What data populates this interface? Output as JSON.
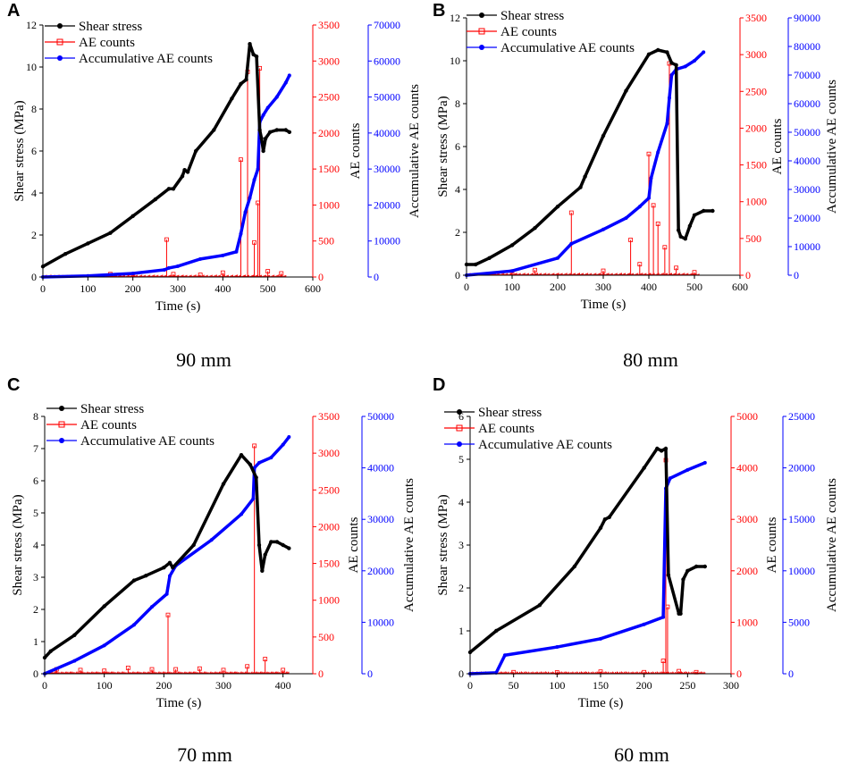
{
  "colors": {
    "shear": "#000000",
    "ae": "#ff0000",
    "cum": "#0000ff"
  },
  "legend": [
    "Shear stress",
    "AE counts",
    "Accumulative AE counts"
  ],
  "axis_titles": {
    "x": "Time (s)",
    "y1": "Shear stress (MPa)",
    "y2": "AE counts",
    "y3": "Accumulative AE counts"
  },
  "chart_data": [
    {
      "panel": "A",
      "caption": "90 mm",
      "type": "line",
      "xlabel": "Time (s)",
      "xlim": [
        0,
        600
      ],
      "xticks": [
        0,
        100,
        200,
        300,
        400,
        500,
        600
      ],
      "y1": {
        "label": "Shear stress (MPa)",
        "lim": [
          0,
          12
        ],
        "ticks": [
          0,
          2,
          4,
          6,
          8,
          10,
          12
        ]
      },
      "y2": {
        "label": "AE counts",
        "lim": [
          0,
          3500
        ],
        "ticks": [
          0,
          500,
          1000,
          1500,
          2000,
          2500,
          3000,
          3500
        ]
      },
      "y3": {
        "label": "Accumulative AE counts",
        "lim": [
          0,
          70000
        ],
        "ticks": [
          0,
          10000,
          20000,
          30000,
          40000,
          50000,
          60000,
          70000
        ]
      },
      "series": [
        {
          "name": "Shear stress",
          "axis": "y1",
          "x": [
            0,
            50,
            100,
            150,
            200,
            250,
            280,
            290,
            310,
            315,
            322,
            340,
            380,
            420,
            440,
            452,
            460,
            468,
            475,
            482,
            486,
            490,
            495,
            505,
            520,
            540,
            548
          ],
          "y": [
            0.5,
            1.1,
            1.6,
            2.1,
            2.9,
            3.7,
            4.2,
            4.2,
            4.8,
            5.1,
            5.0,
            6.0,
            7.0,
            8.5,
            9.2,
            9.4,
            11.1,
            10.6,
            10.5,
            7.0,
            6.6,
            6.0,
            6.6,
            6.9,
            7.0,
            7.0,
            6.9
          ]
        },
        {
          "name": "AE counts",
          "axis": "y2",
          "spikes": [
            [
              150,
              40
            ],
            [
              200,
              35
            ],
            [
              275,
              520
            ],
            [
              290,
              40
            ],
            [
              350,
              30
            ],
            [
              400,
              60
            ],
            [
              440,
              1630
            ],
            [
              455,
              2850
            ],
            [
              470,
              480
            ],
            [
              478,
              1030
            ],
            [
              482,
              2900
            ],
            [
              500,
              80
            ],
            [
              530,
              50
            ]
          ]
        },
        {
          "name": "Accumulative AE counts",
          "axis": "y3",
          "x": [
            0,
            100,
            200,
            270,
            280,
            300,
            350,
            400,
            430,
            440,
            450,
            460,
            470,
            478,
            482,
            490,
            500,
            520,
            540,
            548
          ],
          "y": [
            0,
            300,
            1000,
            2000,
            2500,
            3000,
            5000,
            6000,
            7000,
            12000,
            18000,
            22000,
            27000,
            30000,
            43000,
            45000,
            47000,
            50000,
            54000,
            56000
          ]
        }
      ]
    },
    {
      "panel": "B",
      "caption": "80 mm",
      "type": "line",
      "xlabel": "Time (s)",
      "xlim": [
        0,
        600
      ],
      "xticks": [
        0,
        100,
        200,
        300,
        400,
        500,
        600
      ],
      "y1": {
        "label": "Shear stress (MPa)",
        "lim": [
          0,
          12
        ],
        "ticks": [
          0,
          2,
          4,
          6,
          8,
          10,
          12
        ]
      },
      "y2": {
        "label": "AE counts",
        "lim": [
          0,
          3500
        ],
        "ticks": [
          0,
          500,
          1000,
          1500,
          2000,
          2500,
          3000,
          3500
        ]
      },
      "y3": {
        "label": "Accumulative AE counts",
        "lim": [
          0,
          90000
        ],
        "ticks": [
          0,
          10000,
          20000,
          30000,
          40000,
          50000,
          60000,
          70000,
          80000,
          90000
        ]
      },
      "series": [
        {
          "name": "Shear stress",
          "axis": "y1",
          "x": [
            0,
            20,
            50,
            100,
            150,
            200,
            250,
            260,
            300,
            350,
            400,
            420,
            440,
            450,
            460,
            465,
            470,
            480,
            490,
            500,
            520,
            540
          ],
          "y": [
            0.5,
            0.5,
            0.8,
            1.4,
            2.2,
            3.2,
            4.1,
            4.6,
            6.5,
            8.6,
            10.3,
            10.5,
            10.4,
            9.9,
            9.8,
            2.1,
            1.8,
            1.7,
            2.3,
            2.8,
            3.0,
            3.0
          ]
        },
        {
          "name": "AE counts",
          "axis": "y2",
          "spikes": [
            [
              100,
              50
            ],
            [
              150,
              70
            ],
            [
              230,
              850
            ],
            [
              300,
              60
            ],
            [
              360,
              480
            ],
            [
              380,
              150
            ],
            [
              400,
              1650
            ],
            [
              410,
              950
            ],
            [
              420,
              700
            ],
            [
              435,
              380
            ],
            [
              445,
              2880
            ],
            [
              460,
              100
            ],
            [
              500,
              40
            ]
          ]
        },
        {
          "name": "Accumulative AE counts",
          "axis": "y3",
          "x": [
            0,
            100,
            200,
            230,
            300,
            350,
            380,
            400,
            405,
            420,
            440,
            445,
            450,
            460,
            480,
            500,
            520
          ],
          "y": [
            0,
            1500,
            6000,
            11000,
            16000,
            20000,
            24000,
            27000,
            34000,
            43000,
            53000,
            62000,
            70000,
            72000,
            73000,
            75000,
            78000
          ]
        }
      ]
    },
    {
      "panel": "C",
      "caption": "70 mm",
      "type": "line",
      "xlabel": "Time (s)",
      "xlim": [
        0,
        450
      ],
      "xticks": [
        0,
        100,
        200,
        300,
        400
      ],
      "y1": {
        "label": "Shear stress (MPa)",
        "lim": [
          0,
          8
        ],
        "ticks": [
          0,
          1,
          2,
          3,
          4,
          5,
          6,
          7,
          8
        ]
      },
      "y2": {
        "label": "AE counts",
        "lim": [
          0,
          3500
        ],
        "ticks": [
          0,
          500,
          1000,
          1500,
          2000,
          2500,
          3000,
          3500
        ]
      },
      "y3": {
        "label": "Accumulative AE counts",
        "lim": [
          0,
          50000
        ],
        "ticks": [
          0,
          10000,
          20000,
          30000,
          40000,
          50000
        ]
      },
      "series": [
        {
          "name": "Shear stress",
          "axis": "y1",
          "x": [
            0,
            10,
            50,
            100,
            150,
            170,
            200,
            210,
            215,
            250,
            300,
            330,
            345,
            355,
            360,
            365,
            370,
            380,
            390,
            400,
            410
          ],
          "y": [
            0.5,
            0.7,
            1.2,
            2.1,
            2.9,
            3.05,
            3.3,
            3.45,
            3.3,
            4.0,
            5.9,
            6.8,
            6.5,
            6.1,
            4.0,
            3.2,
            3.7,
            4.1,
            4.1,
            4.0,
            3.9
          ]
        },
        {
          "name": "AE counts",
          "axis": "y2",
          "spikes": [
            [
              20,
              60
            ],
            [
              60,
              50
            ],
            [
              100,
              40
            ],
            [
              140,
              80
            ],
            [
              180,
              60
            ],
            [
              207,
              800
            ],
            [
              220,
              60
            ],
            [
              260,
              70
            ],
            [
              300,
              50
            ],
            [
              340,
              100
            ],
            [
              352,
              3100
            ],
            [
              370,
              200
            ],
            [
              400,
              50
            ]
          ]
        },
        {
          "name": "Accumulative AE counts",
          "axis": "y3",
          "x": [
            0,
            50,
            100,
            150,
            180,
            205,
            210,
            220,
            280,
            330,
            350,
            352,
            360,
            380,
            400,
            410
          ],
          "y": [
            0,
            2500,
            5500,
            9500,
            13000,
            15500,
            19000,
            21000,
            26000,
            31000,
            34000,
            40000,
            41000,
            42000,
            44500,
            46000
          ]
        }
      ]
    },
    {
      "panel": "D",
      "caption": "60 mm",
      "type": "line",
      "xlabel": "Time (s)",
      "xlim": [
        0,
        300
      ],
      "xticks": [
        0,
        50,
        100,
        150,
        200,
        250,
        300
      ],
      "y1": {
        "label": "Shear stress (MPa)",
        "lim": [
          0,
          6
        ],
        "ticks": [
          0,
          1,
          2,
          3,
          4,
          5,
          6
        ]
      },
      "y2": {
        "label": "AE counts",
        "lim": [
          0,
          5000
        ],
        "ticks": [
          0,
          1000,
          2000,
          3000,
          4000,
          5000
        ]
      },
      "y3": {
        "label": "Accumulative AE counts",
        "lim": [
          0,
          25000
        ],
        "ticks": [
          0,
          5000,
          10000,
          15000,
          20000,
          25000
        ]
      },
      "series": [
        {
          "name": "Shear stress",
          "axis": "y1",
          "x": [
            0,
            30,
            80,
            120,
            150,
            155,
            160,
            200,
            215,
            220,
            225,
            228,
            240,
            242,
            245,
            250,
            260,
            270
          ],
          "y": [
            0.5,
            1.0,
            1.6,
            2.5,
            3.4,
            3.6,
            3.65,
            4.8,
            5.25,
            5.2,
            5.25,
            2.3,
            1.4,
            1.4,
            2.2,
            2.4,
            2.5,
            2.5
          ]
        },
        {
          "name": "AE counts",
          "axis": "y2",
          "spikes": [
            [
              50,
              30
            ],
            [
              100,
              25
            ],
            [
              150,
              40
            ],
            [
              200,
              30
            ],
            [
              222,
              250
            ],
            [
              225,
              4150
            ],
            [
              227,
              1300
            ],
            [
              240,
              50
            ],
            [
              260,
              30
            ]
          ]
        },
        {
          "name": "Accumulative AE counts",
          "axis": "y3",
          "x": [
            0,
            30,
            40,
            100,
            150,
            200,
            222,
            225,
            230,
            250,
            270
          ],
          "y": [
            0,
            100,
            1800,
            2600,
            3400,
            4800,
            5500,
            18000,
            19000,
            19800,
            20500
          ]
        }
      ]
    }
  ]
}
